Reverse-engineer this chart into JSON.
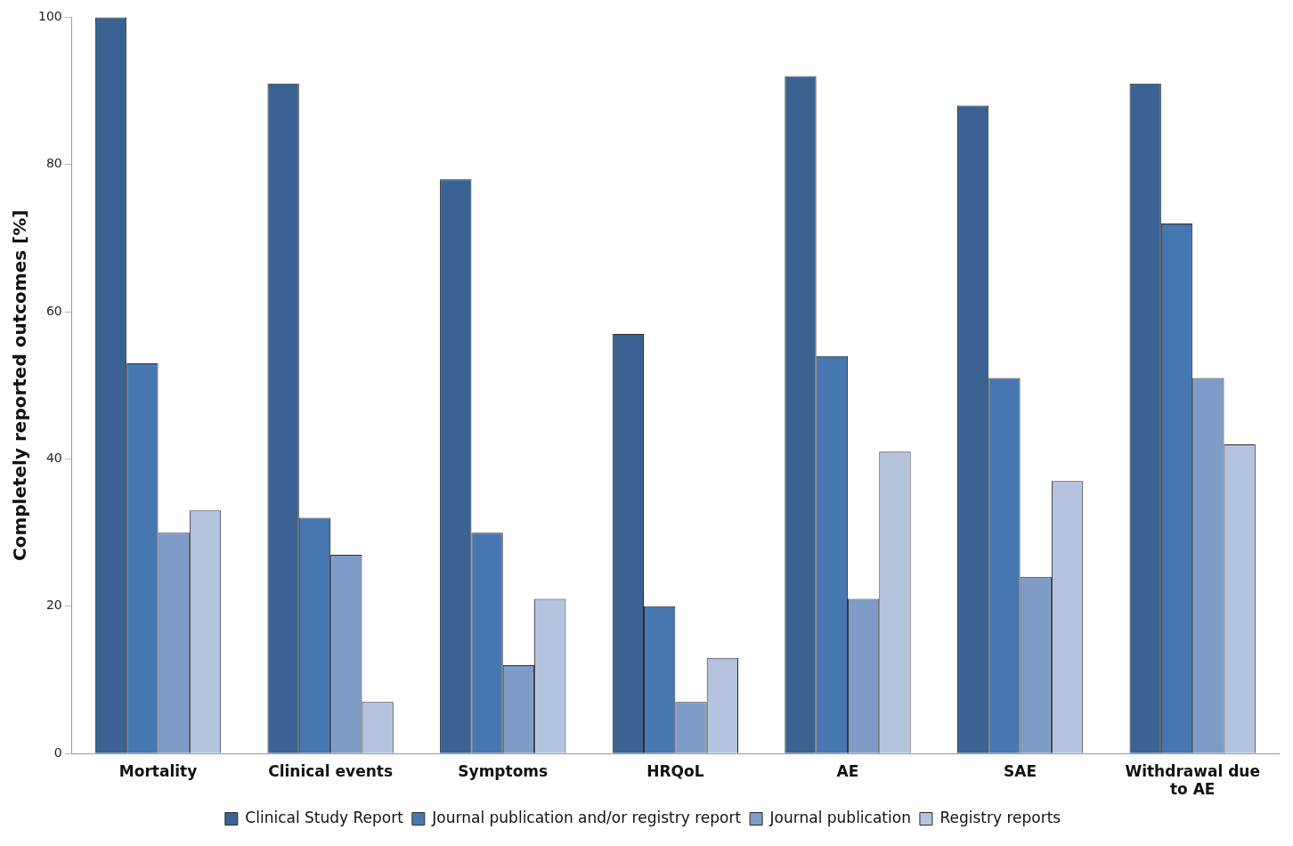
{
  "chart_data": {
    "type": "bar",
    "ylabel": "Completely reported outcomes [%]",
    "categories": [
      "Mortality",
      "Clinical events",
      "Symptoms",
      "HRQoL",
      "AE",
      "SAE",
      "Withdrawal due to AE"
    ],
    "series": [
      {
        "name": "Clinical Study Report",
        "color": "#3a6393",
        "values": [
          100,
          91,
          78,
          57,
          92,
          88,
          91
        ]
      },
      {
        "name": "Journal publication and/or registry report",
        "color": "#4677b0",
        "values": [
          53,
          32,
          30,
          20,
          54,
          51,
          72
        ]
      },
      {
        "name": "Journal publication",
        "color": "#7f9cc8",
        "values": [
          30,
          27,
          12,
          7,
          21,
          24,
          51
        ]
      },
      {
        "name": "Registry reports",
        "color": "#b5c4de",
        "values": [
          33,
          7,
          21,
          13,
          41,
          37,
          42
        ]
      }
    ],
    "ylim": [
      0,
      100
    ],
    "yticks": [
      0,
      20,
      40,
      60,
      80,
      100
    ],
    "grid": false,
    "legend": "bottom"
  }
}
